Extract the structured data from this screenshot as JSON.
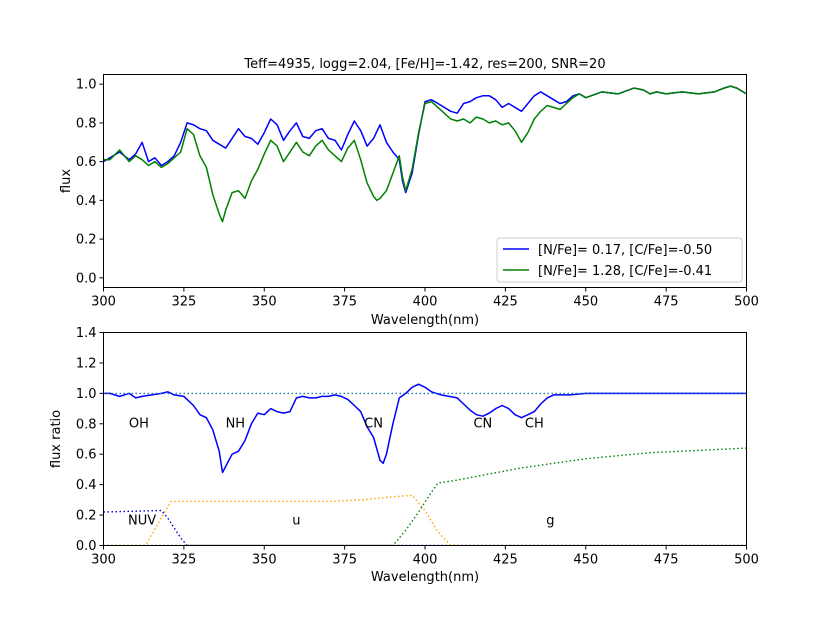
{
  "chart_data": [
    {
      "type": "line",
      "title": "Teff=4935, logg=2.04, [Fe/H]=-1.42, res=200, SNR=20",
      "xlabel": "Wavelength(nm)",
      "ylabel": "flux",
      "xlim": [
        300,
        500
      ],
      "ylim": [
        -0.05,
        1.05
      ],
      "xticks": [
        300,
        325,
        350,
        375,
        400,
        425,
        450,
        475,
        500
      ],
      "yticks": [
        0.0,
        0.2,
        0.4,
        0.6,
        0.8,
        1.0
      ],
      "ytick_labels": [
        "0.0",
        "0.2",
        "0.4",
        "0.6",
        "0.8",
        "1.0"
      ],
      "legend_position": "lower-right",
      "series": [
        {
          "name": "[N/Fe]= 0.17, [C/Fe]=-0.50",
          "color": "#0000ff",
          "x": [
            300,
            302,
            305,
            308,
            310,
            312,
            314,
            316,
            318,
            320,
            322,
            324,
            326,
            328,
            330,
            332,
            334,
            336,
            338,
            340,
            342,
            344,
            346,
            348,
            350,
            352,
            354,
            356,
            358,
            360,
            362,
            364,
            366,
            368,
            370,
            372,
            374,
            376,
            378,
            380,
            382,
            384,
            386,
            388,
            390,
            392,
            393,
            394,
            396,
            398,
            400,
            402,
            404,
            406,
            408,
            410,
            412,
            414,
            416,
            418,
            420,
            422,
            424,
            426,
            428,
            430,
            432,
            434,
            436,
            438,
            440,
            442,
            444,
            446,
            448,
            450,
            455,
            460,
            465,
            468,
            470,
            472,
            475,
            480,
            485,
            490,
            493,
            495,
            497,
            500
          ],
          "y": [
            0.6,
            0.62,
            0.65,
            0.61,
            0.64,
            0.7,
            0.6,
            0.62,
            0.58,
            0.6,
            0.63,
            0.7,
            0.8,
            0.79,
            0.77,
            0.76,
            0.71,
            0.69,
            0.67,
            0.72,
            0.77,
            0.73,
            0.72,
            0.69,
            0.75,
            0.82,
            0.79,
            0.71,
            0.76,
            0.8,
            0.73,
            0.72,
            0.76,
            0.77,
            0.72,
            0.71,
            0.66,
            0.74,
            0.81,
            0.76,
            0.68,
            0.72,
            0.79,
            0.7,
            0.65,
            0.61,
            0.5,
            0.44,
            0.54,
            0.74,
            0.91,
            0.92,
            0.9,
            0.88,
            0.86,
            0.85,
            0.9,
            0.91,
            0.93,
            0.94,
            0.94,
            0.92,
            0.88,
            0.9,
            0.88,
            0.86,
            0.9,
            0.94,
            0.96,
            0.94,
            0.92,
            0.9,
            0.91,
            0.94,
            0.95,
            0.93,
            0.96,
            0.95,
            0.98,
            0.97,
            0.95,
            0.96,
            0.95,
            0.96,
            0.95,
            0.96,
            0.98,
            0.99,
            0.98,
            0.95
          ]
        },
        {
          "name": "[N/Fe]= 1.28, [C/Fe]=-0.41",
          "color": "#008000",
          "x": [
            300,
            302,
            305,
            308,
            310,
            312,
            314,
            316,
            318,
            320,
            322,
            324,
            326,
            328,
            330,
            332,
            334,
            336,
            337,
            338,
            340,
            342,
            344,
            346,
            348,
            350,
            352,
            354,
            356,
            358,
            360,
            362,
            364,
            366,
            368,
            370,
            372,
            374,
            376,
            378,
            380,
            382,
            384,
            385,
            386,
            388,
            390,
            392,
            393,
            394,
            396,
            398,
            400,
            402,
            404,
            406,
            408,
            410,
            412,
            414,
            416,
            418,
            420,
            422,
            424,
            426,
            428,
            430,
            432,
            434,
            436,
            438,
            440,
            442,
            444,
            446,
            448,
            450,
            455,
            460,
            465,
            468,
            470,
            472,
            475,
            480,
            485,
            490,
            493,
            495,
            497,
            500
          ],
          "y": [
            0.61,
            0.61,
            0.66,
            0.6,
            0.63,
            0.61,
            0.58,
            0.6,
            0.57,
            0.59,
            0.62,
            0.65,
            0.77,
            0.74,
            0.63,
            0.57,
            0.43,
            0.33,
            0.29,
            0.35,
            0.44,
            0.45,
            0.41,
            0.5,
            0.56,
            0.64,
            0.71,
            0.68,
            0.6,
            0.65,
            0.7,
            0.65,
            0.63,
            0.68,
            0.71,
            0.66,
            0.63,
            0.6,
            0.67,
            0.71,
            0.61,
            0.49,
            0.42,
            0.4,
            0.41,
            0.45,
            0.54,
            0.63,
            0.52,
            0.45,
            0.56,
            0.75,
            0.9,
            0.91,
            0.88,
            0.85,
            0.82,
            0.81,
            0.82,
            0.8,
            0.83,
            0.82,
            0.8,
            0.81,
            0.79,
            0.8,
            0.76,
            0.7,
            0.75,
            0.82,
            0.86,
            0.89,
            0.88,
            0.87,
            0.9,
            0.93,
            0.95,
            0.93,
            0.96,
            0.95,
            0.98,
            0.97,
            0.95,
            0.96,
            0.95,
            0.96,
            0.95,
            0.96,
            0.98,
            0.99,
            0.98,
            0.95
          ]
        }
      ]
    },
    {
      "type": "line",
      "xlabel": "Wavelength(nm)",
      "ylabel": "flux ratio",
      "xlim": [
        300,
        500
      ],
      "ylim": [
        0.0,
        1.4
      ],
      "xticks": [
        300,
        325,
        350,
        375,
        400,
        425,
        450,
        475,
        500
      ],
      "yticks": [
        0.0,
        0.2,
        0.4,
        0.6,
        0.8,
        1.0,
        1.2,
        1.4
      ],
      "ytick_labels": [
        "0.0",
        "0.2",
        "0.4",
        "0.6",
        "0.8",
        "1.0",
        "1.2",
        "1.4"
      ],
      "annotations": [
        {
          "text": "OH",
          "x": 311,
          "y": 0.81
        },
        {
          "text": "NH",
          "x": 341,
          "y": 0.81
        },
        {
          "text": "CN",
          "x": 384,
          "y": 0.81
        },
        {
          "text": "CN",
          "x": 418,
          "y": 0.81
        },
        {
          "text": "CH",
          "x": 434,
          "y": 0.81
        },
        {
          "text": "NUV",
          "x": 312,
          "y": 0.17
        },
        {
          "text": "u",
          "x": 360,
          "y": 0.17
        },
        {
          "text": "g",
          "x": 439,
          "y": 0.17
        }
      ],
      "series": [
        {
          "name": "",
          "color": "#0000ff",
          "style": "solid",
          "x": [
            300,
            302,
            305,
            308,
            310,
            312,
            315,
            318,
            320,
            322,
            325,
            328,
            330,
            332,
            334,
            336,
            337,
            338,
            340,
            342,
            344,
            346,
            348,
            350,
            352,
            354,
            356,
            358,
            360,
            362,
            364,
            366,
            368,
            370,
            372,
            374,
            376,
            378,
            380,
            382,
            384,
            386,
            387,
            388,
            390,
            392,
            394,
            396,
            398,
            400,
            402,
            405,
            410,
            412,
            414,
            416,
            418,
            420,
            422,
            424,
            426,
            428,
            430,
            432,
            434,
            436,
            438,
            440,
            445,
            450,
            460,
            470,
            480,
            490,
            500
          ],
          "y": [
            1.0,
            1.0,
            0.98,
            1.0,
            0.97,
            0.98,
            0.99,
            1.0,
            1.01,
            0.99,
            0.98,
            0.92,
            0.86,
            0.84,
            0.76,
            0.62,
            0.48,
            0.52,
            0.6,
            0.62,
            0.69,
            0.8,
            0.87,
            0.86,
            0.9,
            0.88,
            0.87,
            0.88,
            0.97,
            0.98,
            0.97,
            0.97,
            0.98,
            0.98,
            0.99,
            0.98,
            0.96,
            0.92,
            0.88,
            0.78,
            0.71,
            0.56,
            0.54,
            0.6,
            0.8,
            0.97,
            1.0,
            1.04,
            1.06,
            1.04,
            1.01,
            0.99,
            0.97,
            0.93,
            0.89,
            0.86,
            0.85,
            0.87,
            0.9,
            0.92,
            0.9,
            0.86,
            0.84,
            0.86,
            0.88,
            0.93,
            0.97,
            0.99,
            0.99,
            1.0,
            1.0,
            1.0,
            1.0,
            1.0,
            1.0
          ]
        },
        {
          "name": "",
          "color": "#1f77b4",
          "style": "dotted",
          "x": [
            300,
            500
          ],
          "y": [
            1.0,
            1.0
          ]
        },
        {
          "name": "",
          "color": "#0000cd",
          "style": "dotted",
          "x": [
            300,
            318,
            320,
            324,
            326,
            500
          ],
          "y": [
            0.22,
            0.23,
            0.18,
            0.05,
            0.0,
            0.0
          ]
        },
        {
          "name": "",
          "color": "#ffa500",
          "style": "dotted",
          "x": [
            300,
            313,
            321,
            330,
            340,
            350,
            360,
            370,
            380,
            390,
            396,
            400,
            404,
            408,
            500
          ],
          "y": [
            0.0,
            0.0,
            0.29,
            0.29,
            0.29,
            0.29,
            0.29,
            0.29,
            0.3,
            0.32,
            0.33,
            0.23,
            0.09,
            0.0,
            0.0
          ]
        },
        {
          "name": "",
          "color": "#008000",
          "style": "dotted",
          "x": [
            300,
            390,
            394,
            398,
            402,
            404,
            410,
            420,
            430,
            440,
            450,
            460,
            470,
            480,
            490,
            500
          ],
          "y": [
            0.0,
            0.0,
            0.1,
            0.22,
            0.35,
            0.41,
            0.43,
            0.47,
            0.51,
            0.54,
            0.57,
            0.59,
            0.61,
            0.62,
            0.63,
            0.64
          ]
        }
      ]
    }
  ]
}
